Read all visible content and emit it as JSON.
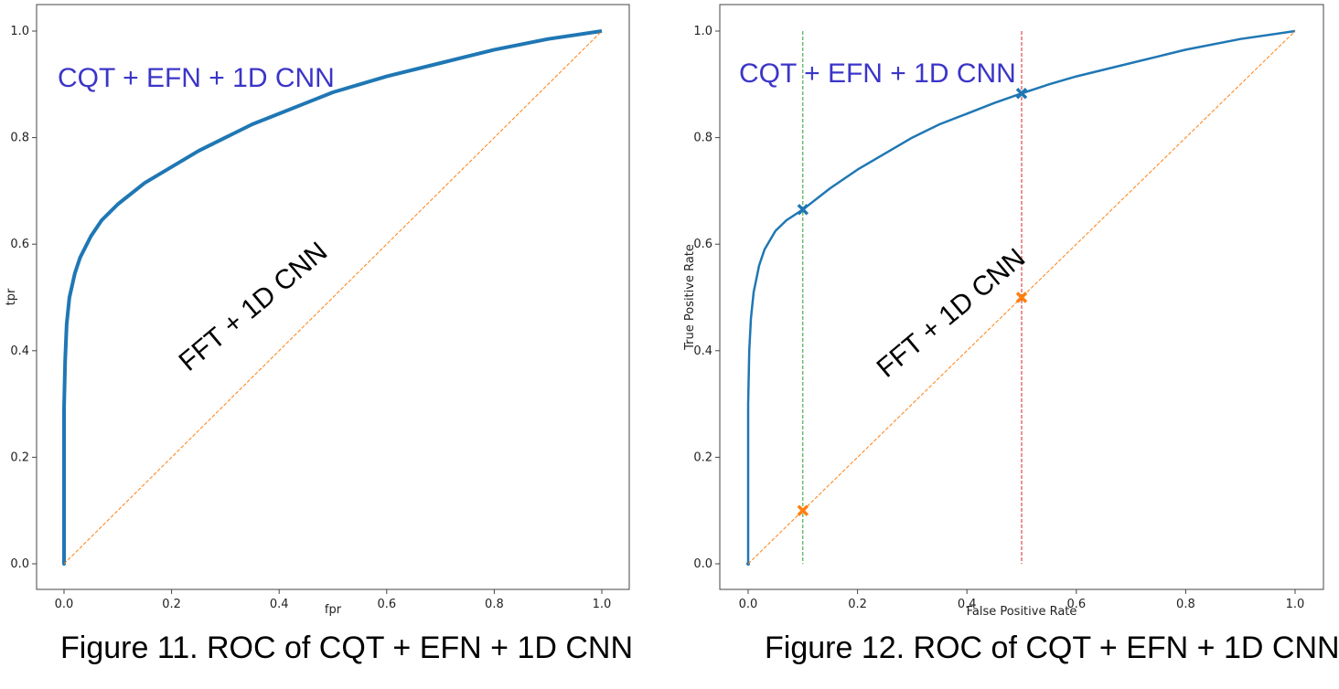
{
  "chart_data": [
    {
      "type": "line",
      "title": "",
      "xlabel": "fpr",
      "ylabel": "tpr",
      "xlim": [
        0.0,
        1.0
      ],
      "ylim": [
        0.0,
        1.0
      ],
      "xticks": [
        "0.0",
        "0.2",
        "0.4",
        "0.6",
        "0.8",
        "1.0"
      ],
      "yticks": [
        "0.0",
        "0.2",
        "0.4",
        "0.6",
        "0.8",
        "1.0"
      ],
      "grid": false,
      "series": [
        {
          "color": "#1f77b4",
          "style": "solid",
          "x": [
            0.0,
            0.0,
            0.0,
            0.002,
            0.005,
            0.01,
            0.02,
            0.03,
            0.05,
            0.07,
            0.1,
            0.15,
            0.2,
            0.25,
            0.3,
            0.35,
            0.4,
            0.45,
            0.5,
            0.55,
            0.6,
            0.7,
            0.8,
            0.9,
            1.0
          ],
          "y": [
            0.0,
            0.27,
            0.29,
            0.38,
            0.45,
            0.5,
            0.545,
            0.575,
            0.615,
            0.645,
            0.675,
            0.715,
            0.745,
            0.775,
            0.8,
            0.825,
            0.845,
            0.865,
            0.885,
            0.9,
            0.915,
            0.94,
            0.965,
            0.985,
            1.0
          ]
        },
        {
          "color": "#ff7f0e",
          "style": "dashed",
          "x": [
            0.0,
            1.0
          ],
          "y": [
            0.0,
            1.0
          ]
        }
      ],
      "annotations": [
        {
          "text": "CQT + EFN + 1D CNN",
          "color": "#3b35c8"
        },
        {
          "text": "FFT + 1D CNN",
          "color": "#000000"
        }
      ]
    },
    {
      "type": "line",
      "title": "",
      "xlabel": "False Positive Rate",
      "ylabel": "True Positive Rate",
      "xlim": [
        0.0,
        1.0
      ],
      "ylim": [
        0.0,
        1.0
      ],
      "xticks": [
        "0.0",
        "0.2",
        "0.4",
        "0.6",
        "0.8",
        "1.0"
      ],
      "yticks": [
        "0.0",
        "0.2",
        "0.4",
        "0.6",
        "0.8",
        "1.0"
      ],
      "grid": false,
      "series": [
        {
          "color": "#1f77b4",
          "style": "solid",
          "x": [
            0.0,
            0.0,
            0.0,
            0.002,
            0.005,
            0.01,
            0.02,
            0.03,
            0.05,
            0.07,
            0.1,
            0.15,
            0.2,
            0.25,
            0.3,
            0.35,
            0.4,
            0.45,
            0.5,
            0.55,
            0.6,
            0.7,
            0.8,
            0.9,
            1.0
          ],
          "y": [
            0.0,
            0.14,
            0.3,
            0.4,
            0.46,
            0.51,
            0.56,
            0.59,
            0.625,
            0.645,
            0.665,
            0.705,
            0.74,
            0.77,
            0.8,
            0.825,
            0.845,
            0.865,
            0.883,
            0.9,
            0.915,
            0.94,
            0.965,
            0.985,
            1.0
          ]
        },
        {
          "color": "#ff7f0e",
          "style": "dashed",
          "x": [
            0.0,
            1.0
          ],
          "y": [
            0.0,
            1.0
          ]
        }
      ],
      "vlines": [
        {
          "x": 0.1,
          "color": "#2ca02c"
        },
        {
          "x": 0.5,
          "color": "#d62728"
        }
      ],
      "markers": [
        {
          "x": 0.1,
          "y": 0.665,
          "color": "#1f77b4"
        },
        {
          "x": 0.5,
          "y": 0.883,
          "color": "#1f77b4"
        },
        {
          "x": 0.1,
          "y": 0.1,
          "color": "#ff7f0e"
        },
        {
          "x": 0.5,
          "y": 0.5,
          "color": "#ff7f0e"
        }
      ],
      "annotations": [
        {
          "text": "CQT + EFN + 1D CNN",
          "color": "#3b35c8"
        },
        {
          "text": "FFT + 1D CNN",
          "color": "#000000"
        }
      ]
    }
  ],
  "captions": [
    "Figure 11. ROC of CQT + EFN + 1D CNN",
    "Figure 12. ROC of CQT + EFN + 1D CNN"
  ]
}
